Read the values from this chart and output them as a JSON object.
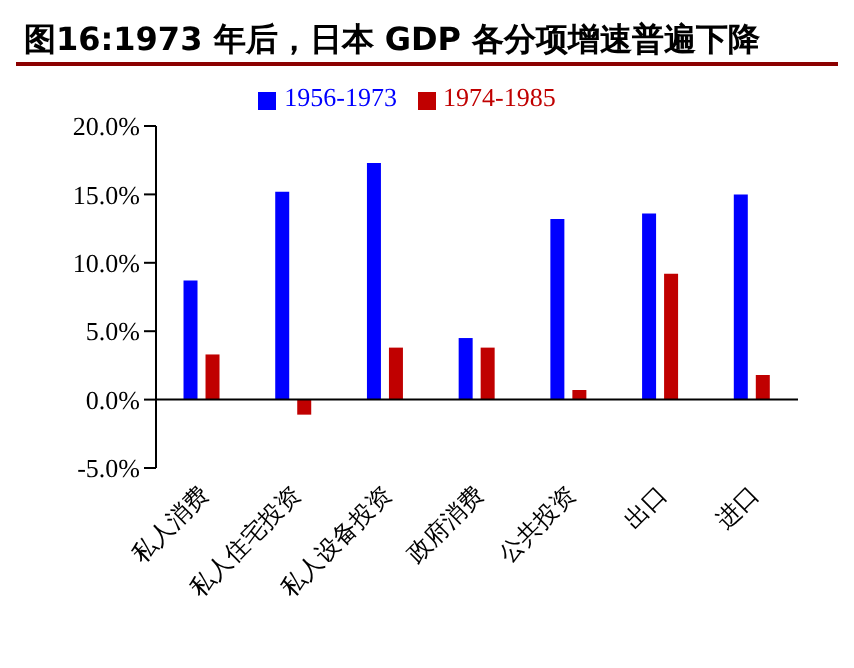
{
  "chart_data": {
    "type": "bar",
    "title": "图16:1973 年后，日本 GDP 各分项增速普遍下降",
    "categories": [
      "私人消费",
      "私人住宅投资",
      "私人设备投资",
      "政府消费",
      "公共投资",
      "出口",
      "进口"
    ],
    "series": [
      {
        "name": "1956-1973",
        "color": "#0000ff",
        "values": [
          8.7,
          15.2,
          17.3,
          4.5,
          13.2,
          13.6,
          15.0
        ]
      },
      {
        "name": "1974-1985",
        "color": "#c00000",
        "values": [
          3.3,
          -1.1,
          3.8,
          3.8,
          0.7,
          9.2,
          1.8
        ]
      }
    ],
    "ylim": [
      -5,
      20
    ],
    "yticks": [
      {
        "value": -5,
        "label": "-5.0%"
      },
      {
        "value": 0,
        "label": "0.0%"
      },
      {
        "value": 5,
        "label": "5.0%"
      },
      {
        "value": 10,
        "label": "10.0%"
      },
      {
        "value": 15,
        "label": "15.0%"
      },
      {
        "value": 20,
        "label": "20.0%"
      }
    ],
    "legend": "top"
  }
}
